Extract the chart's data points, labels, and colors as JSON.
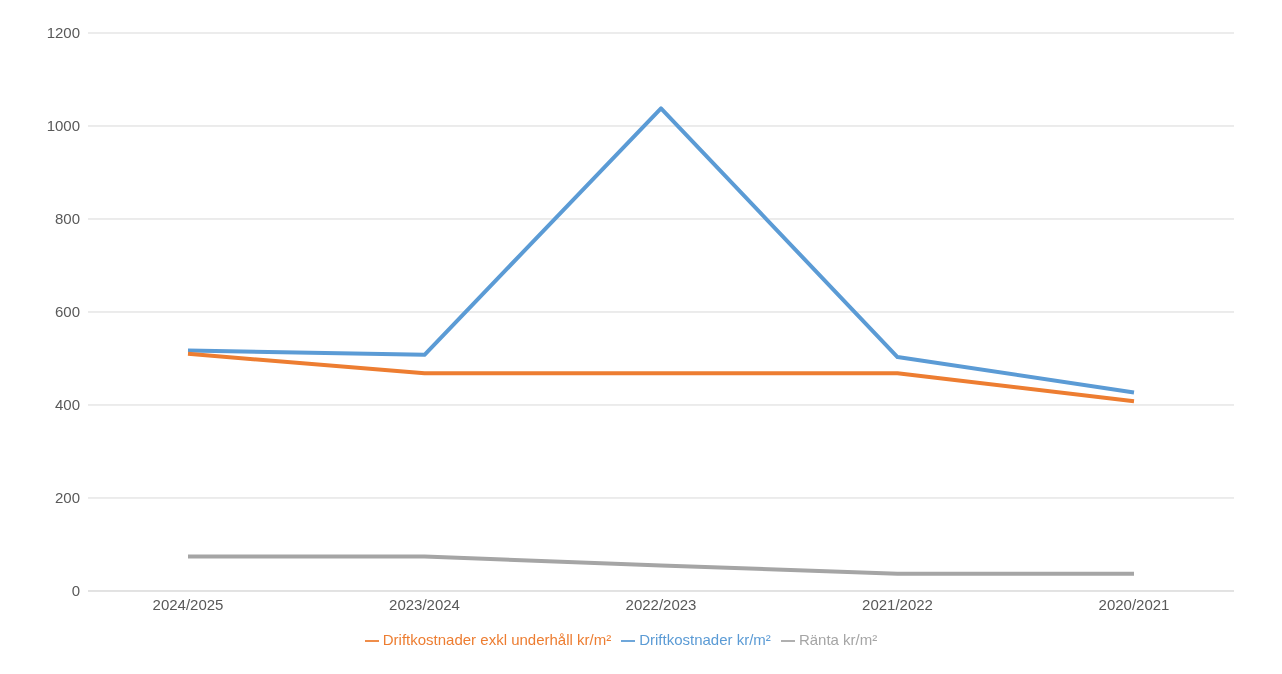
{
  "chart_data": {
    "type": "line",
    "categories": [
      "2024/2025",
      "2023/2024",
      "2022/2023",
      "2021/2022",
      "2020/2021"
    ],
    "series": [
      {
        "name": "Driftkostnader kr/m²",
        "color": "#5b9bd5",
        "values": [
          517,
          508,
          1038,
          503,
          427
        ]
      },
      {
        "name": "Driftkostnader exkl underhåll kr/m²",
        "color": "#ed7d31",
        "values": [
          510,
          468,
          468,
          468,
          408
        ]
      },
      {
        "name": "Ränta kr/m²",
        "color": "#a5a5a5",
        "values": [
          74,
          74,
          55,
          37,
          37
        ]
      }
    ],
    "ylim": [
      0,
      1200
    ],
    "yticks": [
      0,
      200,
      400,
      600,
      800,
      1000,
      1200
    ],
    "grid": "y",
    "legend": "bottom",
    "marker": "none",
    "line_style": "solid"
  }
}
